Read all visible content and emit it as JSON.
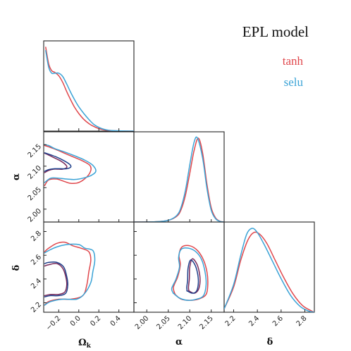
{
  "chart_data": {
    "type": "triangle-corner-plot",
    "title": "EPL model",
    "parameters": [
      {
        "id": "omk",
        "label": "Ωk",
        "label_main": "Ω",
        "label_sub": "k",
        "range": [
          -0.35,
          0.55
        ],
        "ticks": [
          -0.2,
          0.0,
          0.2,
          0.4
        ],
        "tick_labels": [
          "−0.2",
          "0.0",
          "0.2",
          "0.4"
        ]
      },
      {
        "id": "alpha",
        "label": "α",
        "range": [
          1.97,
          2.18
        ],
        "ticks": [
          2.0,
          2.05,
          2.1,
          2.15
        ],
        "tick_labels": [
          "2.00",
          "2.05",
          "2.10",
          "2.15"
        ]
      },
      {
        "id": "delta",
        "label": "δ",
        "range": [
          2.12,
          2.88
        ],
        "ticks": [
          2.2,
          2.4,
          2.6,
          2.8
        ],
        "tick_labels": [
          "2.2",
          "2.4",
          "2.6",
          "2.8"
        ]
      }
    ],
    "legend": {
      "placement": "top-right",
      "entries": [
        {
          "name": "tanh",
          "color": "#e0474c"
        },
        {
          "name": "selu",
          "color": "#3ba3d6"
        }
      ]
    },
    "colors": {
      "tanh": "#e0474c",
      "tanh_inner": "#7a2a5a",
      "selu": "#3ba3d6",
      "selu_inner": "#1f3f8a"
    },
    "marginals": {
      "omk": {
        "tanh": [
          [
            -0.33,
            1.0
          ],
          [
            -0.3,
            0.8
          ],
          [
            -0.27,
            0.72
          ],
          [
            -0.24,
            0.7
          ],
          [
            -0.2,
            0.66
          ],
          [
            -0.16,
            0.58
          ],
          [
            -0.12,
            0.47
          ],
          [
            -0.08,
            0.37
          ],
          [
            -0.04,
            0.28
          ],
          [
            0.0,
            0.21
          ],
          [
            0.05,
            0.14
          ],
          [
            0.1,
            0.09
          ],
          [
            0.15,
            0.055
          ],
          [
            0.2,
            0.03
          ],
          [
            0.25,
            0.015
          ],
          [
            0.3,
            0.007
          ],
          [
            0.4,
            0.002
          ],
          [
            0.55,
            0.0
          ]
        ],
        "selu": [
          [
            -0.33,
            0.96
          ],
          [
            -0.3,
            0.76
          ],
          [
            -0.27,
            0.69
          ],
          [
            -0.24,
            0.69
          ],
          [
            -0.2,
            0.69
          ],
          [
            -0.16,
            0.65
          ],
          [
            -0.12,
            0.56
          ],
          [
            -0.08,
            0.46
          ],
          [
            -0.04,
            0.37
          ],
          [
            0.0,
            0.29
          ],
          [
            0.05,
            0.21
          ],
          [
            0.1,
            0.14
          ],
          [
            0.15,
            0.08
          ],
          [
            0.2,
            0.045
          ],
          [
            0.25,
            0.022
          ],
          [
            0.3,
            0.01
          ],
          [
            0.4,
            0.003
          ],
          [
            0.55,
            0.0
          ]
        ]
      },
      "alpha": {
        "tanh": [
          [
            1.97,
            0.0
          ],
          [
            2.02,
            0.003
          ],
          [
            2.05,
            0.02
          ],
          [
            2.07,
            0.07
          ],
          [
            2.08,
            0.15
          ],
          [
            2.09,
            0.32
          ],
          [
            2.1,
            0.58
          ],
          [
            2.11,
            0.85
          ],
          [
            2.12,
            1.0
          ],
          [
            2.13,
            0.82
          ],
          [
            2.14,
            0.45
          ],
          [
            2.15,
            0.17
          ],
          [
            2.16,
            0.05
          ],
          [
            2.17,
            0.01
          ],
          [
            2.18,
            0.0
          ]
        ],
        "selu": [
          [
            1.97,
            0.0
          ],
          [
            2.02,
            0.003
          ],
          [
            2.05,
            0.02
          ],
          [
            2.07,
            0.08
          ],
          [
            2.08,
            0.18
          ],
          [
            2.09,
            0.38
          ],
          [
            2.1,
            0.68
          ],
          [
            2.11,
            0.95
          ],
          [
            2.118,
            1.0
          ],
          [
            2.13,
            0.76
          ],
          [
            2.14,
            0.4
          ],
          [
            2.15,
            0.14
          ],
          [
            2.16,
            0.04
          ],
          [
            2.17,
            0.008
          ],
          [
            2.18,
            0.0
          ]
        ]
      },
      "delta": {
        "tanh": [
          [
            2.12,
            0.04
          ],
          [
            2.2,
            0.3
          ],
          [
            2.26,
            0.62
          ],
          [
            2.32,
            0.86
          ],
          [
            2.37,
            0.95
          ],
          [
            2.42,
            0.93
          ],
          [
            2.48,
            0.82
          ],
          [
            2.55,
            0.62
          ],
          [
            2.62,
            0.42
          ],
          [
            2.7,
            0.22
          ],
          [
            2.78,
            0.08
          ],
          [
            2.85,
            0.02
          ],
          [
            2.88,
            0.0
          ]
        ],
        "selu": [
          [
            2.12,
            0.04
          ],
          [
            2.2,
            0.33
          ],
          [
            2.26,
            0.68
          ],
          [
            2.31,
            0.93
          ],
          [
            2.355,
            1.0
          ],
          [
            2.4,
            0.95
          ],
          [
            2.46,
            0.8
          ],
          [
            2.53,
            0.6
          ],
          [
            2.6,
            0.4
          ],
          [
            2.68,
            0.2
          ],
          [
            2.76,
            0.07
          ],
          [
            2.83,
            0.015
          ],
          [
            2.88,
            0.0
          ]
        ]
      }
    },
    "contours": {
      "omk_alpha": {
        "tanh_outer": [
          [
            -0.34,
            2.055
          ],
          [
            -0.3,
            2.068
          ],
          [
            -0.22,
            2.07
          ],
          [
            -0.14,
            2.064
          ],
          [
            -0.08,
            2.06
          ],
          [
            0.0,
            2.062
          ],
          [
            0.08,
            2.075
          ],
          [
            0.12,
            2.09
          ],
          [
            0.11,
            2.102
          ],
          [
            0.04,
            2.112
          ],
          [
            -0.06,
            2.122
          ],
          [
            -0.16,
            2.132
          ],
          [
            -0.24,
            2.14
          ],
          [
            -0.3,
            2.145
          ],
          [
            -0.34,
            2.148
          ]
        ],
        "selu_outer": [
          [
            -0.34,
            2.062
          ],
          [
            -0.28,
            2.072
          ],
          [
            -0.2,
            2.072
          ],
          [
            -0.12,
            2.07
          ],
          [
            -0.04,
            2.069
          ],
          [
            0.04,
            2.072
          ],
          [
            0.12,
            2.078
          ],
          [
            0.17,
            2.088
          ],
          [
            0.14,
            2.102
          ],
          [
            0.06,
            2.114
          ],
          [
            -0.04,
            2.124
          ],
          [
            -0.14,
            2.133
          ],
          [
            -0.24,
            2.141
          ],
          [
            -0.3,
            2.148
          ],
          [
            -0.34,
            2.15
          ]
        ],
        "tanh_inner": [
          [
            -0.34,
            2.085
          ],
          [
            -0.3,
            2.09
          ],
          [
            -0.25,
            2.093
          ],
          [
            -0.2,
            2.093
          ],
          [
            -0.16,
            2.093
          ],
          [
            -0.12,
            2.097
          ],
          [
            -0.13,
            2.103
          ],
          [
            -0.18,
            2.112
          ],
          [
            -0.25,
            2.12
          ],
          [
            -0.31,
            2.127
          ],
          [
            -0.34,
            2.13
          ]
        ],
        "selu_inner": [
          [
            -0.34,
            2.088
          ],
          [
            -0.3,
            2.092
          ],
          [
            -0.24,
            2.094
          ],
          [
            -0.18,
            2.094
          ],
          [
            -0.12,
            2.094
          ],
          [
            -0.08,
            2.098
          ],
          [
            -0.09,
            2.104
          ],
          [
            -0.15,
            2.113
          ],
          [
            -0.23,
            2.122
          ],
          [
            -0.3,
            2.128
          ],
          [
            -0.34,
            2.131
          ]
        ]
      },
      "omk_delta": {
        "tanh_outer": [
          [
            -0.34,
            2.18
          ],
          [
            -0.3,
            2.21
          ],
          [
            -0.2,
            2.23
          ],
          [
            -0.08,
            2.23
          ],
          [
            0.04,
            2.26
          ],
          [
            0.08,
            2.35
          ],
          [
            0.1,
            2.46
          ],
          [
            0.12,
            2.56
          ],
          [
            0.1,
            2.63
          ],
          [
            0.02,
            2.66
          ],
          [
            -0.06,
            2.68
          ],
          [
            -0.14,
            2.71
          ],
          [
            -0.22,
            2.7
          ],
          [
            -0.3,
            2.66
          ],
          [
            -0.34,
            2.63
          ]
        ],
        "selu_outer": [
          [
            -0.34,
            2.18
          ],
          [
            -0.28,
            2.21
          ],
          [
            -0.16,
            2.23
          ],
          [
            -0.02,
            2.23
          ],
          [
            0.06,
            2.28
          ],
          [
            0.12,
            2.37
          ],
          [
            0.14,
            2.46
          ],
          [
            0.16,
            2.56
          ],
          [
            0.14,
            2.64
          ],
          [
            0.06,
            2.66
          ],
          [
            0.0,
            2.69
          ],
          [
            -0.12,
            2.69
          ],
          [
            -0.22,
            2.67
          ],
          [
            -0.3,
            2.64
          ],
          [
            -0.34,
            2.62
          ]
        ],
        "tanh_inner": [
          [
            -0.34,
            2.26
          ],
          [
            -0.28,
            2.27
          ],
          [
            -0.2,
            2.27
          ],
          [
            -0.14,
            2.29
          ],
          [
            -0.12,
            2.35
          ],
          [
            -0.13,
            2.42
          ],
          [
            -0.16,
            2.49
          ],
          [
            -0.22,
            2.53
          ],
          [
            -0.3,
            2.52
          ],
          [
            -0.34,
            2.51
          ]
        ],
        "selu_inner": [
          [
            -0.34,
            2.25
          ],
          [
            -0.28,
            2.26
          ],
          [
            -0.2,
            2.26
          ],
          [
            -0.13,
            2.28
          ],
          [
            -0.11,
            2.35
          ],
          [
            -0.12,
            2.42
          ],
          [
            -0.15,
            2.5
          ],
          [
            -0.22,
            2.54
          ],
          [
            -0.3,
            2.54
          ],
          [
            -0.34,
            2.53
          ]
        ]
      },
      "alpha_delta": {
        "tanh_outer": [
          [
            2.066,
            2.27
          ],
          [
            2.08,
            2.23
          ],
          [
            2.1,
            2.22
          ],
          [
            2.12,
            2.23
          ],
          [
            2.138,
            2.27
          ],
          [
            2.142,
            2.36
          ],
          [
            2.14,
            2.46
          ],
          [
            2.132,
            2.56
          ],
          [
            2.118,
            2.64
          ],
          [
            2.1,
            2.68
          ],
          [
            2.082,
            2.67
          ],
          [
            2.075,
            2.6
          ],
          [
            2.078,
            2.52
          ],
          [
            2.072,
            2.42
          ],
          [
            2.062,
            2.33
          ],
          [
            2.066,
            2.27
          ]
        ],
        "selu_outer": [
          [
            2.062,
            2.28
          ],
          [
            2.076,
            2.24
          ],
          [
            2.096,
            2.22
          ],
          [
            2.116,
            2.23
          ],
          [
            2.132,
            2.26
          ],
          [
            2.138,
            2.35
          ],
          [
            2.136,
            2.45
          ],
          [
            2.128,
            2.56
          ],
          [
            2.114,
            2.63
          ],
          [
            2.096,
            2.66
          ],
          [
            2.08,
            2.65
          ],
          [
            2.074,
            2.58
          ],
          [
            2.076,
            2.5
          ],
          [
            2.068,
            2.4
          ],
          [
            2.058,
            2.32
          ],
          [
            2.062,
            2.28
          ]
        ],
        "tanh_inner": [
          [
            2.098,
            2.3
          ],
          [
            2.11,
            2.28
          ],
          [
            2.12,
            2.31
          ],
          [
            2.124,
            2.38
          ],
          [
            2.122,
            2.46
          ],
          [
            2.116,
            2.53
          ],
          [
            2.106,
            2.57
          ],
          [
            2.1,
            2.5
          ],
          [
            2.099,
            2.4
          ],
          [
            2.097,
            2.33
          ],
          [
            2.098,
            2.3
          ]
        ],
        "selu_inner": [
          [
            2.094,
            2.3
          ],
          [
            2.106,
            2.28
          ],
          [
            2.116,
            2.3
          ],
          [
            2.12,
            2.37
          ],
          [
            2.118,
            2.45
          ],
          [
            2.112,
            2.52
          ],
          [
            2.102,
            2.56
          ],
          [
            2.096,
            2.49
          ],
          [
            2.095,
            2.39
          ],
          [
            2.093,
            2.33
          ],
          [
            2.094,
            2.3
          ]
        ]
      }
    }
  }
}
